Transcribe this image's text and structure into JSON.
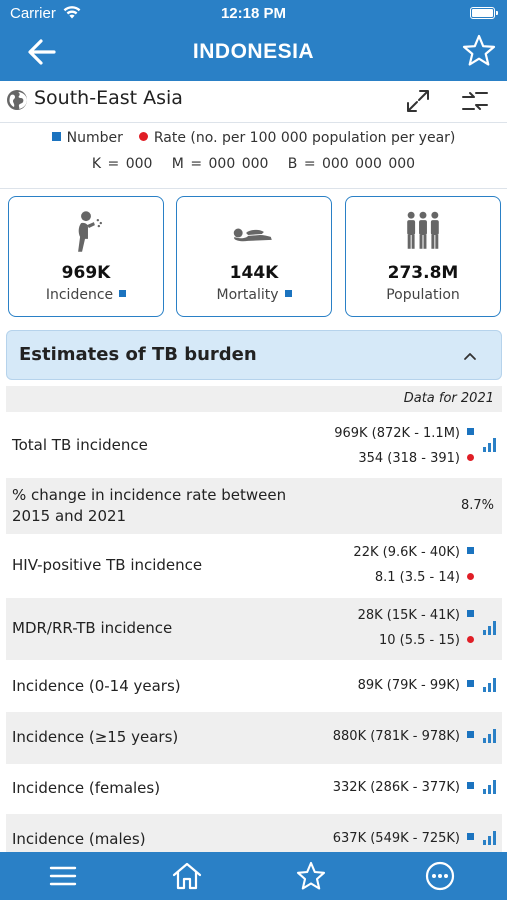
{
  "status_bar": {
    "carrier": "Carrier",
    "time": "12:18 PM"
  },
  "header": {
    "title": "INDONESIA"
  },
  "region": {
    "name": "South-East Asia"
  },
  "legend": {
    "number_label": "Number",
    "rate_label": "Rate (no. per 100 000 population per year)",
    "units": "K = 000   M = 000 000   B = 000 000 000"
  },
  "cards": [
    {
      "value": "969K",
      "label": "Incidence",
      "icon": "person-coughing-icon"
    },
    {
      "value": "144K",
      "label": "Mortality",
      "icon": "person-lying-icon"
    },
    {
      "value": "273.8M",
      "label": "Population",
      "icon": "people-group-icon"
    }
  ],
  "section": {
    "title": "Estimates of TB burden",
    "data_for": "Data for 2021"
  },
  "rows": [
    {
      "name": "Total TB incidence",
      "number": "969K (872K - 1.1M)",
      "rate": "354 (318 - 391)"
    },
    {
      "name": "% change in incidence rate between 2015 and 2021",
      "value": "8.7%"
    },
    {
      "name": "HIV-positive TB incidence",
      "number": "22K (9.6K - 40K)",
      "rate": "8.1 (3.5 - 14)"
    },
    {
      "name": "MDR/RR-TB incidence",
      "number": "28K (15K - 41K)",
      "rate": "10 (5.5 - 15)"
    },
    {
      "name": "Incidence (0-14 years)",
      "number": "89K (79K - 99K)"
    },
    {
      "name": "Incidence (≥15 years)",
      "number": "880K (781K - 978K)"
    },
    {
      "name": "Incidence (females)",
      "number": "332K (286K - 377K)"
    },
    {
      "name": "Incidence (males)",
      "number": "637K (549K - 725K)"
    }
  ],
  "colors": {
    "brand_blue": "#2a80c6",
    "number_marker": "#1b73bf",
    "rate_marker": "#e01e26",
    "section_bg": "#d6e9f8"
  }
}
